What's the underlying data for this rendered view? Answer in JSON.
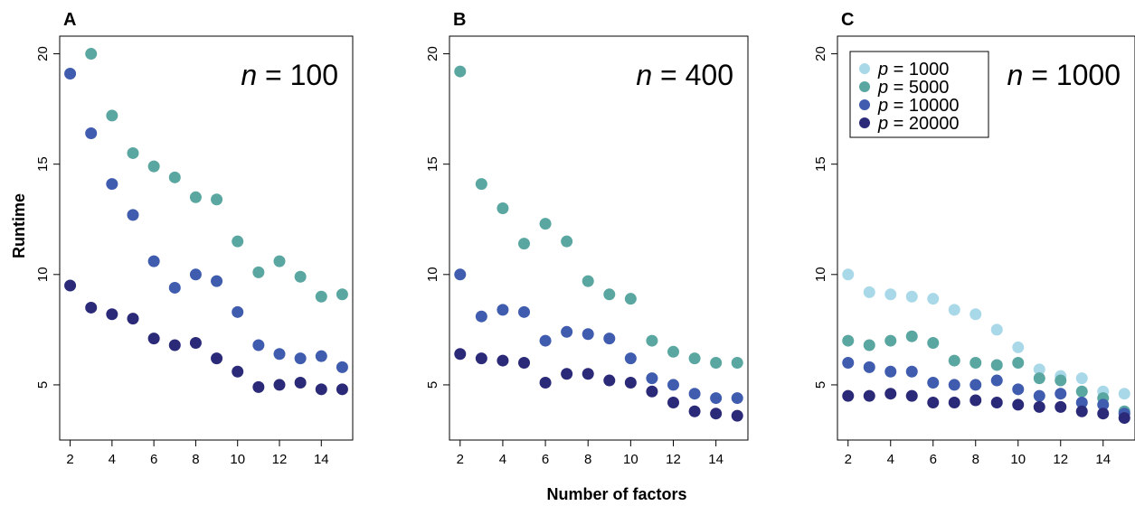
{
  "figure": {
    "ylabel": "Runtime",
    "xlabel": "Number of factors"
  },
  "colors": {
    "p1000": "#a9d9e8",
    "p5000": "#5aa6a0",
    "p10000": "#3f5cae",
    "p20000": "#2b2a78"
  },
  "legend": {
    "entries": [
      {
        "var": "p",
        "eq": " = 1000",
        "color": "#a9d9e8"
      },
      {
        "var": "p",
        "eq": " = 5000",
        "color": "#5aa6a0"
      },
      {
        "var": "p",
        "eq": " = 10000",
        "color": "#3f5cae"
      },
      {
        "var": "p",
        "eq": " = 20000",
        "color": "#2b2a78"
      }
    ],
    "placement": "top-left of panel C"
  },
  "chart_data": [
    {
      "type": "scatter",
      "panel": "A",
      "annotation": {
        "var": "n",
        "eq": " = 100"
      },
      "x": [
        2,
        3,
        4,
        5,
        6,
        7,
        8,
        9,
        10,
        11,
        12,
        13,
        14,
        15
      ],
      "xticks": [
        2,
        4,
        6,
        8,
        10,
        12,
        14
      ],
      "yticks": [
        5,
        10,
        15,
        20
      ],
      "xlim": [
        1.5,
        15.5
      ],
      "ylim": [
        2.5,
        20.8
      ],
      "grid": false,
      "series": [
        {
          "name": "p = 5000",
          "color": "#5aa6a0",
          "values": [
            null,
            20.0,
            17.2,
            15.5,
            14.9,
            14.4,
            13.5,
            13.4,
            11.5,
            10.1,
            10.6,
            9.9,
            9.0,
            9.1
          ]
        },
        {
          "name": "p = 10000",
          "color": "#3f5cae",
          "values": [
            19.1,
            16.4,
            14.1,
            12.7,
            10.6,
            9.4,
            10.0,
            9.7,
            8.3,
            6.8,
            6.4,
            6.2,
            6.3,
            5.8
          ]
        },
        {
          "name": "p = 20000",
          "color": "#2b2a78",
          "values": [
            9.5,
            8.5,
            8.2,
            8.0,
            7.1,
            6.8,
            6.9,
            6.2,
            5.6,
            4.9,
            5.0,
            5.1,
            4.8,
            4.8
          ]
        }
      ]
    },
    {
      "type": "scatter",
      "panel": "B",
      "annotation": {
        "var": "n",
        "eq": " = 400"
      },
      "x": [
        2,
        3,
        4,
        5,
        6,
        7,
        8,
        9,
        10,
        11,
        12,
        13,
        14,
        15
      ],
      "xticks": [
        2,
        4,
        6,
        8,
        10,
        12,
        14
      ],
      "yticks": [
        5,
        10,
        15,
        20
      ],
      "xlim": [
        1.5,
        15.5
      ],
      "ylim": [
        2.5,
        20.8
      ],
      "grid": false,
      "series": [
        {
          "name": "p = 5000",
          "color": "#5aa6a0",
          "values": [
            19.2,
            14.1,
            13.0,
            11.4,
            12.3,
            11.5,
            9.7,
            9.1,
            8.9,
            7.0,
            6.5,
            6.2,
            6.0,
            6.0
          ]
        },
        {
          "name": "p = 10000",
          "color": "#3f5cae",
          "values": [
            10.0,
            8.1,
            8.4,
            8.3,
            7.0,
            7.4,
            7.3,
            7.1,
            6.2,
            5.3,
            5.0,
            4.6,
            4.4,
            4.4
          ]
        },
        {
          "name": "p = 20000",
          "color": "#2b2a78",
          "values": [
            6.4,
            6.2,
            6.1,
            6.0,
            5.1,
            5.5,
            5.5,
            5.2,
            5.1,
            4.7,
            4.2,
            3.8,
            3.7,
            3.6
          ]
        }
      ]
    },
    {
      "type": "scatter",
      "panel": "C",
      "annotation": {
        "var": "n",
        "eq": " = 1000"
      },
      "x": [
        2,
        3,
        4,
        5,
        6,
        7,
        8,
        9,
        10,
        11,
        12,
        13,
        14,
        15
      ],
      "xticks": [
        2,
        4,
        6,
        8,
        10,
        12,
        14
      ],
      "yticks": [
        5,
        10,
        15,
        20
      ],
      "xlim": [
        1.5,
        15.5
      ],
      "ylim": [
        2.5,
        20.8
      ],
      "grid": false,
      "series": [
        {
          "name": "p = 1000",
          "color": "#a9d9e8",
          "values": [
            10.0,
            9.2,
            9.1,
            9.0,
            8.9,
            8.4,
            8.2,
            7.5,
            6.7,
            5.7,
            5.4,
            5.3,
            4.7,
            4.6
          ]
        },
        {
          "name": "p = 5000",
          "color": "#5aa6a0",
          "values": [
            7.0,
            6.8,
            7.0,
            7.2,
            6.9,
            6.1,
            6.0,
            5.9,
            6.0,
            5.3,
            5.2,
            4.7,
            4.4,
            3.8
          ]
        },
        {
          "name": "p = 10000",
          "color": "#3f5cae",
          "values": [
            6.0,
            5.8,
            5.6,
            5.6,
            5.1,
            5.0,
            5.0,
            5.2,
            4.8,
            4.5,
            4.6,
            4.2,
            4.1,
            3.7
          ]
        },
        {
          "name": "p = 20000",
          "color": "#2b2a78",
          "values": [
            4.5,
            4.5,
            4.6,
            4.5,
            4.2,
            4.2,
            4.3,
            4.2,
            4.1,
            4.0,
            4.0,
            3.8,
            3.7,
            3.5
          ]
        }
      ]
    }
  ]
}
